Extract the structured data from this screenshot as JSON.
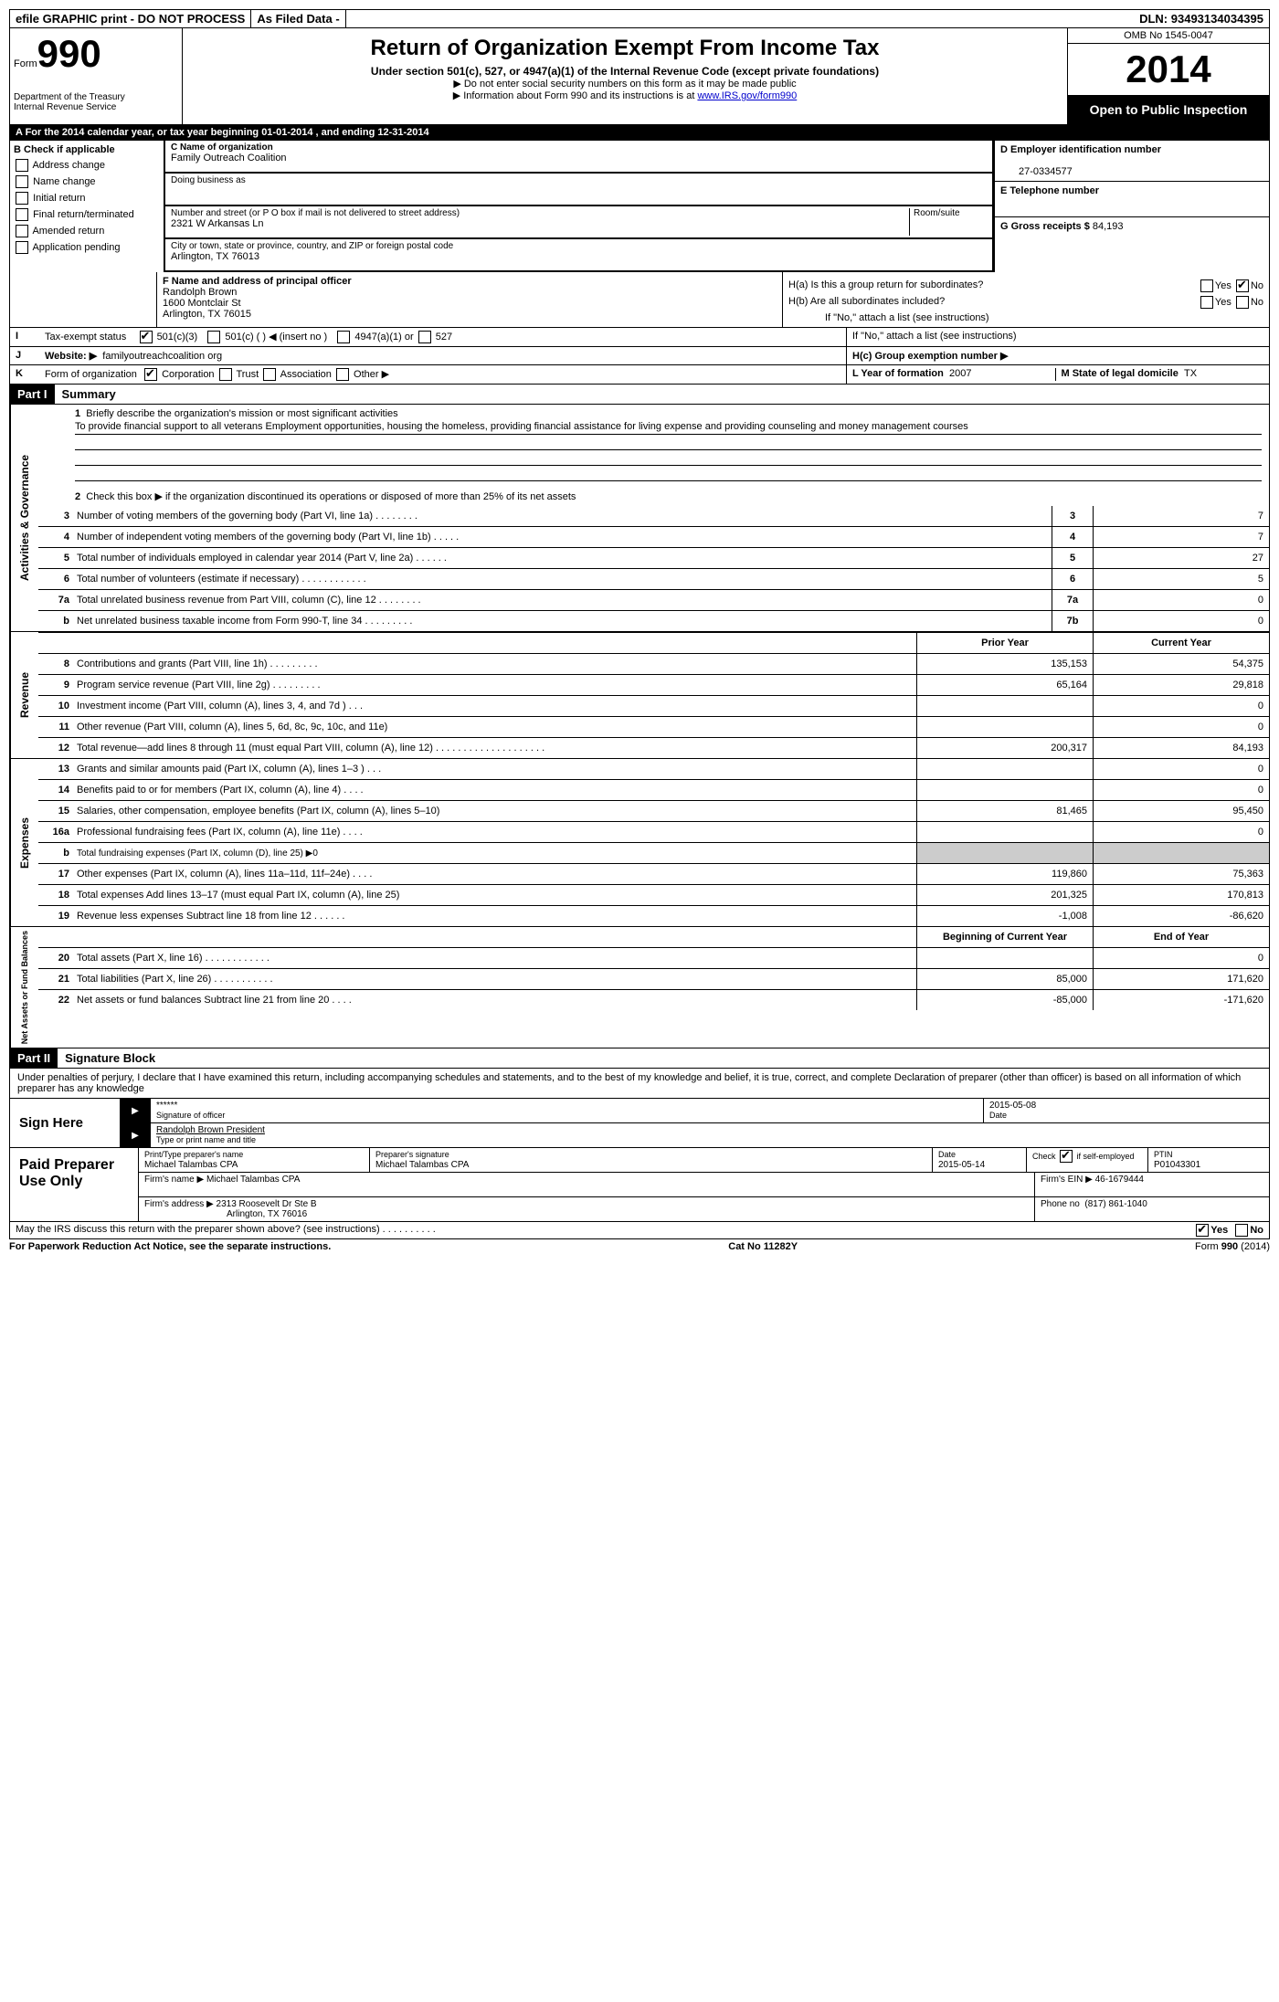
{
  "top_bar": {
    "efile": "efile GRAPHIC print - DO NOT PROCESS",
    "as_filed": "As Filed Data -",
    "dln_label": "DLN:",
    "dln": "93493134034395"
  },
  "header": {
    "form_label": "Form",
    "form_num": "990",
    "dept1": "Department of the Treasury",
    "dept2": "Internal Revenue Service",
    "title": "Return of Organization Exempt From Income Tax",
    "subtitle": "Under section 501(c), 527, or 4947(a)(1) of the Internal Revenue Code (except private foundations)",
    "note1": "▶ Do not enter social security numbers on this form as it may be made public",
    "note2_pre": "▶ Information about Form 990 and its instructions is at ",
    "note2_link": "www.IRS.gov/form990",
    "omb": "OMB No 1545-0047",
    "year": "2014",
    "open": "Open to Public Inspection"
  },
  "row_a": "A  For the 2014 calendar year, or tax year beginning 01-01-2014    , and ending 12-31-2014",
  "col_b": {
    "hdr": "B  Check if applicable",
    "items": [
      "Address change",
      "Name change",
      "Initial return",
      "Final return/terminated",
      "Amended return",
      "Application pending"
    ]
  },
  "col_c": {
    "name_lbl": "C Name of organization",
    "name": "Family Outreach Coalition",
    "dba_lbl": "Doing business as",
    "dba": "",
    "addr_lbl": "Number and street (or P O  box if mail is not delivered to street address)",
    "room_lbl": "Room/suite",
    "addr": "2321 W Arkansas Ln",
    "city_lbl": "City or town, state or province, country, and ZIP or foreign postal code",
    "city": "Arlington, TX  76013"
  },
  "col_de": {
    "ein_lbl": "D Employer identification number",
    "ein": "27-0334577",
    "phone_lbl": "E Telephone number",
    "phone": "",
    "gross_lbl": "G Gross receipts $",
    "gross": "84,193"
  },
  "col_f": {
    "lbl": "F  Name and address of principal officer",
    "name": "Randolph Brown",
    "addr1": "1600 Montclair St",
    "addr2": "Arlington, TX  76015"
  },
  "col_h": {
    "ha": "H(a)  Is this a group return for subordinates?",
    "hb": "H(b)  Are all subordinates included?",
    "hb_note": "If \"No,\" attach a list  (see instructions)",
    "hc": "H(c)  Group exemption number ▶",
    "yes": "Yes",
    "no": "No"
  },
  "row_i": {
    "lbl": "I",
    "text": "Tax-exempt status",
    "opt1": "501(c)(3)",
    "opt2": "501(c) (  ) ◀ (insert no )",
    "opt3": "4947(a)(1) or",
    "opt4": "527"
  },
  "row_j": {
    "lbl": "J",
    "text": "Website: ▶",
    "val": "familyoutreachcoalition org"
  },
  "row_k": {
    "lbl": "K",
    "text": "Form of organization",
    "opts": [
      "Corporation",
      "Trust",
      "Association",
      "Other ▶"
    ],
    "l_lbl": "L Year of formation",
    "l_val": "2007",
    "m_lbl": "M State of legal domicile",
    "m_val": "TX"
  },
  "part1": {
    "num": "Part I",
    "title": "Summary"
  },
  "mission": {
    "line1_lbl": "1",
    "line1_text": "Briefly describe the organization's mission or most significant activities",
    "line1_val": "To provide financial support to all veterans  Employment opportunities, housing the homeless, providing financial assistance for living expense and providing counseling and money management courses",
    "line2_lbl": "2",
    "line2_text": "Check this box ▶     if the organization discontinued its operations or disposed of more than 25% of its net assets"
  },
  "gov_rows": [
    {
      "n": "3",
      "d": "Number of voting members of the governing body (Part VI, line 1a)   .    .    .    .    .    .    .    .",
      "b": "3",
      "v": "7"
    },
    {
      "n": "4",
      "d": "Number of independent voting members of the governing body (Part VI, line 1b)   .    .    .    .    .",
      "b": "4",
      "v": "7"
    },
    {
      "n": "5",
      "d": "Total number of individuals employed in calendar year 2014 (Part V, line 2a)   .    .    .    .    .    .",
      "b": "5",
      "v": "27"
    },
    {
      "n": "6",
      "d": "Total number of volunteers (estimate if necessary)   .    .    .    .    .    .    .    .    .    .    .    .",
      "b": "6",
      "v": "5"
    },
    {
      "n": "7a",
      "d": "Total unrelated business revenue from Part VIII, column (C), line 12   .    .    .    .    .    .    .    .",
      "b": "7a",
      "v": "0"
    },
    {
      "n": "b",
      "d": "Net unrelated business taxable income from Form 990-T, line 34   .    .    .    .    .    .    .    .    .",
      "b": "7b",
      "v": "0"
    }
  ],
  "py_cy_hdr": {
    "py": "Prior Year",
    "cy": "Current Year"
  },
  "revenue_rows": [
    {
      "n": "8",
      "d": "Contributions and grants (Part VIII, line 1h)   .    .    .    .    .    .    .    .    .",
      "py": "135,153",
      "cy": "54,375"
    },
    {
      "n": "9",
      "d": "Program service revenue (Part VIII, line 2g)   .    .    .    .    .    .    .    .    .",
      "py": "65,164",
      "cy": "29,818"
    },
    {
      "n": "10",
      "d": "Investment income (Part VIII, column (A), lines 3, 4, and 7d )   .    .    .",
      "py": "",
      "cy": "0"
    },
    {
      "n": "11",
      "d": "Other revenue (Part VIII, column (A), lines 5, 6d, 8c, 9c, 10c, and 11e)",
      "py": "",
      "cy": "0"
    },
    {
      "n": "12",
      "d": "Total revenue—add lines 8 through 11 (must equal Part VIII, column (A), line 12)   .    .    .    .    .    .    .    .    .    .    .    .    .    .    .    .    .    .    .    .",
      "py": "200,317",
      "cy": "84,193"
    }
  ],
  "expense_rows": [
    {
      "n": "13",
      "d": "Grants and similar amounts paid (Part IX, column (A), lines 1–3 )   .    .    .",
      "py": "",
      "cy": "0"
    },
    {
      "n": "14",
      "d": "Benefits paid to or for members (Part IX, column (A), line 4)   .    .    .    .",
      "py": "",
      "cy": "0"
    },
    {
      "n": "15",
      "d": "Salaries, other compensation, employee benefits (Part IX, column (A), lines 5–10)",
      "py": "81,465",
      "cy": "95,450"
    },
    {
      "n": "16a",
      "d": "Professional fundraising fees (Part IX, column (A), line 11e)   .    .    .    .",
      "py": "",
      "cy": "0"
    },
    {
      "n": "b",
      "d": "Total fundraising expenses (Part IX, column (D), line 25) ▶0",
      "py": "—",
      "cy": "—"
    },
    {
      "n": "17",
      "d": "Other expenses (Part IX, column (A), lines 11a–11d, 11f–24e)   .    .    .    .",
      "py": "119,860",
      "cy": "75,363"
    },
    {
      "n": "18",
      "d": "Total expenses  Add lines 13–17 (must equal Part IX, column (A), line 25)",
      "py": "201,325",
      "cy": "170,813"
    },
    {
      "n": "19",
      "d": "Revenue less expenses  Subtract line 18 from line 12   .    .    .    .    .    .",
      "py": "-1,008",
      "cy": "-86,620"
    }
  ],
  "na_hdr": {
    "py": "Beginning of Current Year",
    "cy": "End of Year"
  },
  "na_rows": [
    {
      "n": "20",
      "d": "Total assets (Part X, line 16)   .    .    .    .    .    .    .    .    .    .    .    .",
      "py": "",
      "cy": "0"
    },
    {
      "n": "21",
      "d": "Total liabilities (Part X, line 26)   .    .    .    .    .    .    .    .    .    .    .",
      "py": "85,000",
      "cy": "171,620"
    },
    {
      "n": "22",
      "d": "Net assets or fund balances  Subtract line 21 from line 20   .    .    .    .",
      "py": "-85,000",
      "cy": "-171,620"
    }
  ],
  "part2": {
    "num": "Part II",
    "title": "Signature Block"
  },
  "sig_text": "Under penalties of perjury, I declare that I have examined this return, including accompanying schedules and statements, and to the best of my knowledge and belief, it is true, correct, and complete  Declaration of preparer (other than officer) is based on all information of which preparer has any knowledge",
  "sign_here": "Sign Here",
  "sig": {
    "stars": "******",
    "sig_of_officer": "Signature of officer",
    "date_lbl": "Date",
    "date": "2015-05-08",
    "name": "Randolph Brown President",
    "name_lbl": "Type or print name and title"
  },
  "paid": {
    "hdr": "Paid Preparer Use Only",
    "prep_name_lbl": "Print/Type preparer's name",
    "prep_name": "Michael Talambas CPA",
    "prep_sig_lbl": "Preparer's signature",
    "prep_sig": "Michael Talambas CPA",
    "date_lbl": "Date",
    "date": "2015-05-14",
    "check_lbl": "Check     if self-employed",
    "ptin_lbl": "PTIN",
    "ptin": "P01043301",
    "firm_name_lbl": "Firm's name    ▶",
    "firm_name": "Michael Talambas CPA",
    "firm_ein_lbl": "Firm's EIN ▶",
    "firm_ein": "46-1679444",
    "firm_addr_lbl": "Firm's address ▶",
    "firm_addr1": "2313 Roosevelt Dr Ste B",
    "firm_addr2": "Arlington, TX  76016",
    "phone_lbl": "Phone no",
    "phone": "(817) 861-1040"
  },
  "discuss": {
    "text": "May the IRS discuss this return with the preparer shown above? (see instructions)   .    .    .    .    .    .    .    .    .    .",
    "yes": "Yes",
    "no": "No"
  },
  "footer": {
    "left": "For Paperwork Reduction Act Notice, see the separate instructions.",
    "mid": "Cat No 11282Y",
    "right": "Form 990 (2014)"
  }
}
